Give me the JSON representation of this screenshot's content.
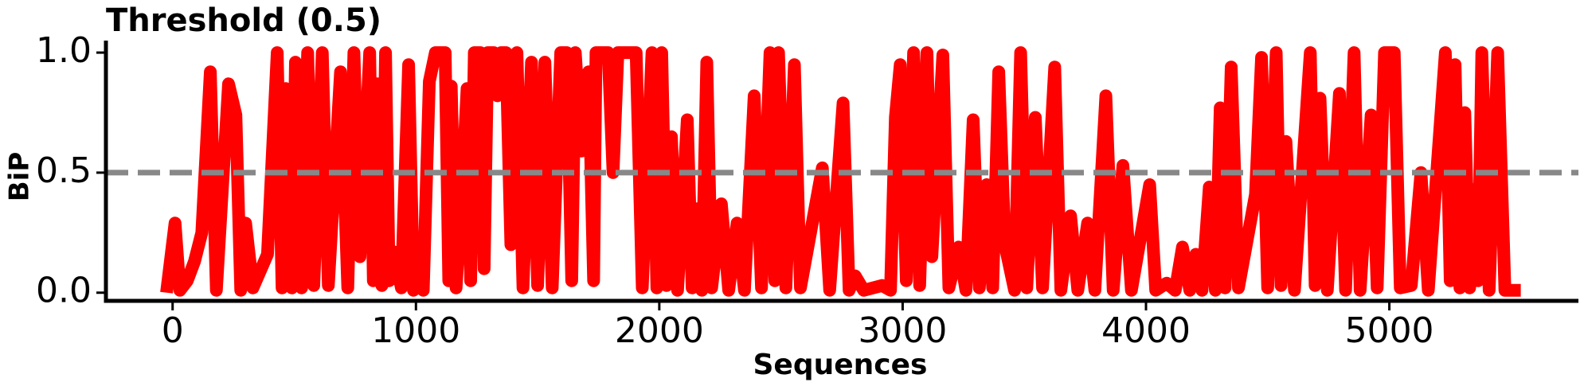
{
  "chart_data": {
    "type": "line",
    "title": "Threshold (0.5)",
    "xlabel": "Sequences",
    "ylabel": "BiP",
    "color": "#ff0000",
    "threshold": 0.5,
    "threshold_color": "#888888",
    "xlim": [
      -274,
      5777
    ],
    "ylim": [
      -0.034,
      1.05
    ],
    "xticks": [
      0,
      1000,
      2000,
      3000,
      4000,
      5000
    ],
    "yticks": [
      {
        "value": 0,
        "label": "0.0"
      },
      0.5,
      {
        "value": 1,
        "label": "1.0"
      }
    ],
    "x": [
      -25,
      10,
      30,
      60,
      90,
      120,
      155,
      180,
      230,
      260,
      280,
      300,
      330,
      390,
      430,
      450,
      465,
      490,
      505,
      530,
      555,
      580,
      615,
      640,
      690,
      720,
      745,
      770,
      810,
      825,
      840,
      860,
      875,
      890,
      910,
      940,
      970,
      990,
      1005,
      1030,
      1055,
      1080,
      1100,
      1120,
      1135,
      1145,
      1165,
      1185,
      1210,
      1225,
      1240,
      1265,
      1280,
      1295,
      1320,
      1335,
      1350,
      1370,
      1390,
      1415,
      1440,
      1475,
      1500,
      1530,
      1560,
      1595,
      1620,
      1640,
      1655,
      1680,
      1710,
      1730,
      1740,
      1765,
      1790,
      1810,
      1830,
      1855,
      1880,
      1905,
      1930,
      1970,
      1990,
      2010,
      2030,
      2050,
      2075,
      2115,
      2135,
      2155,
      2175,
      2195,
      2215,
      2255,
      2285,
      2320,
      2350,
      2390,
      2420,
      2455,
      2475,
      2490,
      2520,
      2555,
      2580,
      2670,
      2700,
      2755,
      2780,
      2805,
      2840,
      2915,
      2950,
      2970,
      2990,
      3015,
      3045,
      3070,
      3100,
      3120,
      3165,
      3190,
      3230,
      3260,
      3290,
      3315,
      3345,
      3370,
      3395,
      3420,
      3460,
      3485,
      3510,
      3545,
      3575,
      3625,
      3650,
      3690,
      3720,
      3760,
      3790,
      3835,
      3865,
      3905,
      3940,
      4015,
      4040,
      4085,
      4120,
      4150,
      4180,
      4205,
      4230,
      4260,
      4285,
      4305,
      4325,
      4350,
      4380,
      4450,
      4475,
      4500,
      4535,
      4555,
      4575,
      4610,
      4675,
      4695,
      4715,
      4745,
      4795,
      4820,
      4855,
      4880,
      4925,
      4950,
      4980,
      5000,
      5020,
      5045,
      5090,
      5130,
      5160,
      5230,
      5250,
      5270,
      5290,
      5310,
      5330,
      5350,
      5365,
      5380,
      5410,
      5445,
      5475,
      5505,
      5540
    ],
    "values": [
      0,
      0.29,
      0.01,
      0.05,
      0.13,
      0.25,
      0.92,
      0.01,
      0.87,
      0.74,
      0.01,
      0.29,
      0.02,
      0.16,
      1.0,
      0.02,
      0.85,
      0.02,
      0.96,
      0.02,
      1.0,
      0.03,
      1.0,
      0.03,
      0.92,
      0.02,
      1.0,
      0.15,
      1.0,
      0.05,
      0.87,
      0.03,
      1.0,
      0.05,
      0.17,
      0.02,
      0.95,
      0.01,
      0.18,
      0.01,
      0.88,
      1.0,
      1.0,
      1.0,
      0.05,
      0.86,
      0.02,
      0.34,
      0.85,
      0.05,
      1.0,
      1.0,
      0.1,
      1.0,
      1.0,
      0.82,
      1.0,
      1.0,
      0.2,
      1.0,
      0.02,
      0.96,
      0.03,
      0.96,
      0.02,
      1.0,
      1.0,
      0.05,
      1.0,
      0.59,
      0.92,
      0.05,
      1.0,
      1.0,
      1.0,
      0.5,
      1.0,
      1.0,
      1.0,
      1.0,
      0.02,
      1.0,
      0.02,
      1.0,
      0.03,
      0.65,
      0.01,
      0.72,
      0.02,
      0.35,
      0.01,
      0.96,
      0.02,
      0.37,
      0.01,
      0.29,
      0.01,
      0.82,
      0.02,
      1.0,
      0.05,
      1.0,
      0.02,
      0.95,
      0.02,
      0.52,
      0.01,
      0.79,
      0.01,
      0.07,
      0.01,
      0.03,
      0.01,
      0.73,
      0.95,
      0.05,
      1.0,
      0.03,
      1.0,
      0.15,
      0.99,
      0.02,
      0.19,
      0.01,
      0.72,
      0.02,
      0.45,
      0.02,
      0.92,
      0.2,
      0.01,
      1.0,
      0.02,
      0.73,
      0.02,
      0.94,
      0.01,
      0.32,
      0.01,
      0.29,
      0.01,
      0.82,
      0.01,
      0.53,
      0.01,
      0.45,
      0.01,
      0.04,
      0.01,
      0.19,
      0.01,
      0.16,
      0.01,
      0.44,
      0.01,
      0.77,
      0.02,
      0.94,
      0.02,
      0.41,
      0.98,
      0.02,
      1.0,
      0.03,
      0.63,
      0.01,
      1.0,
      0.03,
      0.81,
      0.01,
      0.83,
      0.01,
      1.0,
      0.01,
      0.74,
      0.02,
      1.0,
      1.0,
      1.0,
      0.02,
      0.03,
      0.5,
      0.01,
      1.0,
      0.05,
      0.95,
      0.02,
      0.75,
      0.02,
      0.43,
      0.05,
      1.0,
      0.01,
      1.0,
      0.01,
      0.01,
      0.01
    ]
  }
}
